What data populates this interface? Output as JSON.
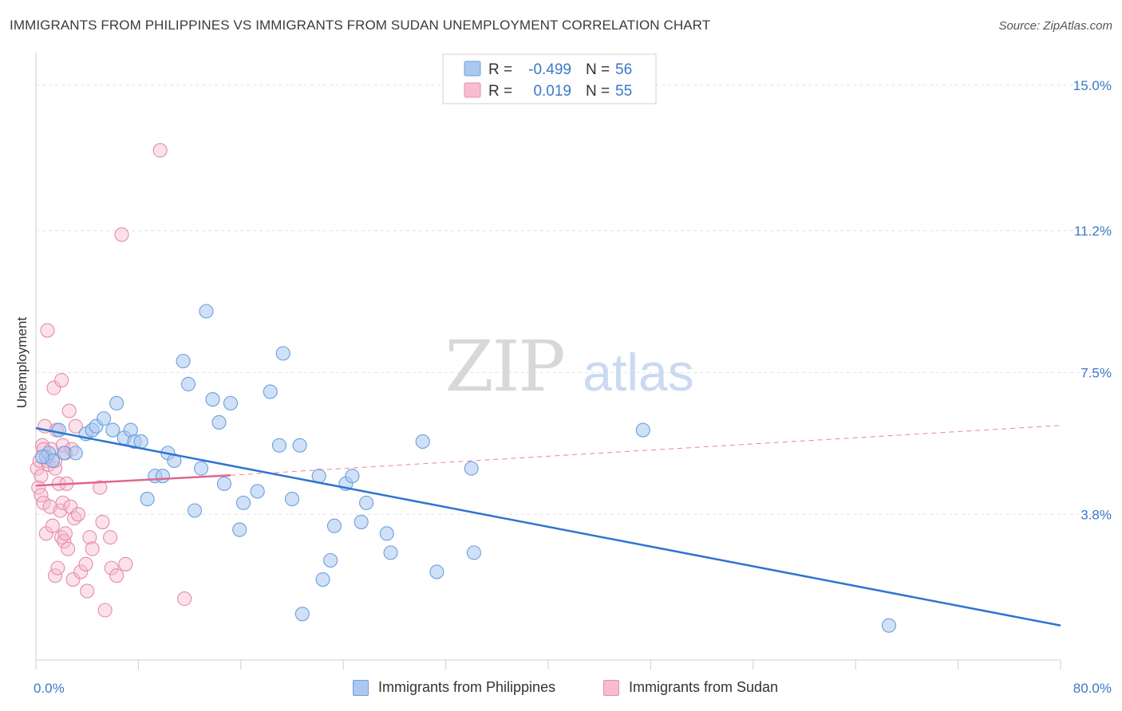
{
  "title": "IMMIGRANTS FROM PHILIPPINES VS IMMIGRANTS FROM SUDAN UNEMPLOYMENT CORRELATION CHART",
  "source": "Source: ZipAtlas.com",
  "watermark": {
    "zip": "ZIP",
    "atlas": "atlas"
  },
  "colors": {
    "philippines_fill": "#aac8f0",
    "philippines_stroke": "#6a9fdc",
    "philippines_line": "#2f74d0",
    "sudan_fill": "#f7bcd0",
    "sudan_stroke": "#e88aaa",
    "sudan_line": "#e0668e",
    "tick_text": "#3b78c8"
  },
  "legend": {
    "rows": [
      {
        "r_label": "R =",
        "r_value": "-0.499",
        "n_label": "N =",
        "n_value": "56"
      },
      {
        "r_label": "R =",
        "r_value": "0.019",
        "n_label": "N =",
        "n_value": "55"
      }
    ]
  },
  "bottom_legend": {
    "philippines": "Immigrants from Philippines",
    "sudan": "Immigrants from Sudan"
  },
  "chart_data": {
    "type": "scatter",
    "title": "IMMIGRANTS FROM PHILIPPINES VS IMMIGRANTS FROM SUDAN UNEMPLOYMENT CORRELATION CHART",
    "xlabel": "",
    "ylabel": "Unemployment",
    "xlim": [
      0,
      80
    ],
    "ylim": [
      0,
      15.6
    ],
    "x_tick_labels": [
      "0.0%",
      "80.0%"
    ],
    "y_ticks": [
      3.8,
      7.5,
      11.2,
      15.0
    ],
    "y_tick_labels": [
      "3.8%",
      "7.5%",
      "11.2%",
      "15.0%"
    ],
    "grid": "horizontal dashed",
    "legend_position": "top-center",
    "series": [
      {
        "name": "Immigrants from Philippines",
        "r": -0.499,
        "n": 56,
        "trend": {
          "x": [
            0,
            80
          ],
          "y": [
            6.05,
            0.9
          ],
          "style": "solid"
        },
        "points": [
          [
            0.8,
            5.3
          ],
          [
            1.0,
            5.4
          ],
          [
            1.3,
            5.2
          ],
          [
            2.2,
            5.4
          ],
          [
            3.1,
            5.4
          ],
          [
            3.9,
            5.9
          ],
          [
            4.4,
            6.0
          ],
          [
            4.7,
            6.1
          ],
          [
            5.3,
            6.3
          ],
          [
            6.0,
            6.0
          ],
          [
            6.3,
            6.7
          ],
          [
            6.9,
            5.8
          ],
          [
            7.4,
            6.0
          ],
          [
            7.7,
            5.7
          ],
          [
            8.2,
            5.7
          ],
          [
            8.7,
            4.2
          ],
          [
            9.3,
            4.8
          ],
          [
            9.9,
            4.8
          ],
          [
            10.3,
            5.4
          ],
          [
            10.8,
            5.2
          ],
          [
            11.5,
            7.8
          ],
          [
            11.9,
            7.2
          ],
          [
            12.4,
            3.9
          ],
          [
            12.9,
            5.0
          ],
          [
            13.3,
            9.1
          ],
          [
            13.8,
            6.8
          ],
          [
            14.3,
            6.2
          ],
          [
            14.7,
            4.6
          ],
          [
            15.2,
            6.7
          ],
          [
            15.9,
            3.4
          ],
          [
            16.2,
            4.1
          ],
          [
            17.3,
            4.4
          ],
          [
            18.3,
            7.0
          ],
          [
            19.0,
            5.6
          ],
          [
            19.3,
            8.0
          ],
          [
            20.0,
            4.2
          ],
          [
            20.6,
            5.6
          ],
          [
            20.8,
            1.2
          ],
          [
            22.1,
            4.8
          ],
          [
            22.4,
            2.1
          ],
          [
            23.0,
            2.6
          ],
          [
            23.3,
            3.5
          ],
          [
            24.2,
            4.6
          ],
          [
            24.7,
            4.8
          ],
          [
            25.4,
            3.6
          ],
          [
            25.8,
            4.1
          ],
          [
            27.4,
            3.3
          ],
          [
            27.7,
            2.8
          ],
          [
            30.2,
            5.7
          ],
          [
            31.3,
            2.3
          ],
          [
            34.0,
            5.0
          ],
          [
            34.2,
            2.8
          ],
          [
            47.4,
            6.0
          ],
          [
            66.6,
            0.9
          ],
          [
            0.5,
            5.3
          ],
          [
            1.8,
            6.0
          ]
        ]
      },
      {
        "name": "Immigrants from Sudan",
        "r": 0.019,
        "n": 55,
        "trend": {
          "x": [
            0,
            15.2
          ],
          "y": [
            4.55,
            4.82
          ],
          "style": "solid",
          "extended": {
            "x": [
              15.2,
              80
            ],
            "y": [
              4.82,
              6.12
            ],
            "style": "dashed"
          }
        },
        "points": [
          [
            0.1,
            5.0
          ],
          [
            0.2,
            4.5
          ],
          [
            0.3,
            5.2
          ],
          [
            0.4,
            4.8
          ],
          [
            0.4,
            4.3
          ],
          [
            0.5,
            5.6
          ],
          [
            0.6,
            4.1
          ],
          [
            0.7,
            6.1
          ],
          [
            0.8,
            3.3
          ],
          [
            0.9,
            5.2
          ],
          [
            1.0,
            5.1
          ],
          [
            1.1,
            4.0
          ],
          [
            1.2,
            5.5
          ],
          [
            1.3,
            3.5
          ],
          [
            1.4,
            7.1
          ],
          [
            1.5,
            2.2
          ],
          [
            1.5,
            5.0
          ],
          [
            1.6,
            6.0
          ],
          [
            1.7,
            2.4
          ],
          [
            1.8,
            4.6
          ],
          [
            1.9,
            3.9
          ],
          [
            2.0,
            3.2
          ],
          [
            2.0,
            7.3
          ],
          [
            2.1,
            5.6
          ],
          [
            2.1,
            4.1
          ],
          [
            2.2,
            3.1
          ],
          [
            2.3,
            5.4
          ],
          [
            2.3,
            3.3
          ],
          [
            2.4,
            4.6
          ],
          [
            2.5,
            2.9
          ],
          [
            2.6,
            6.5
          ],
          [
            2.7,
            4.0
          ],
          [
            2.8,
            5.5
          ],
          [
            2.9,
            2.1
          ],
          [
            3.0,
            3.7
          ],
          [
            3.1,
            6.1
          ],
          [
            3.3,
            3.8
          ],
          [
            3.5,
            2.3
          ],
          [
            3.9,
            2.5
          ],
          [
            4.0,
            1.8
          ],
          [
            4.2,
            3.2
          ],
          [
            4.4,
            2.9
          ],
          [
            5.0,
            4.5
          ],
          [
            5.2,
            3.6
          ],
          [
            5.4,
            1.3
          ],
          [
            5.8,
            3.2
          ],
          [
            5.9,
            2.4
          ],
          [
            6.3,
            2.2
          ],
          [
            6.7,
            11.1
          ],
          [
            7.0,
            2.5
          ],
          [
            9.7,
            13.3
          ],
          [
            11.6,
            1.6
          ],
          [
            0.9,
            8.6
          ],
          [
            1.5,
            5.2
          ],
          [
            0.6,
            5.5
          ]
        ]
      }
    ]
  }
}
